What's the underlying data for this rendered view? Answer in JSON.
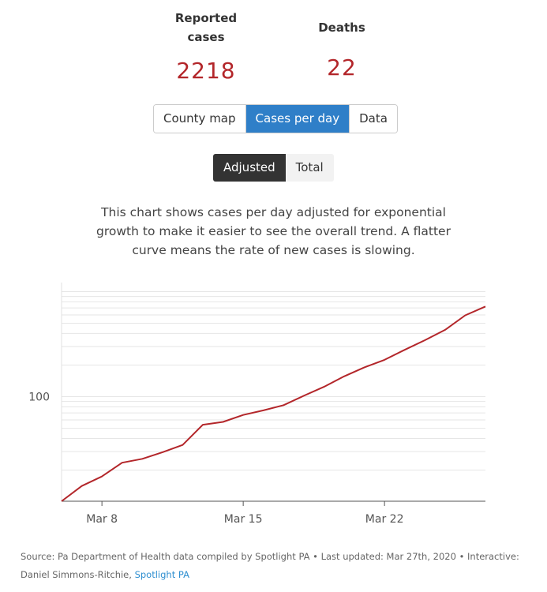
{
  "stats": {
    "cases": {
      "label": "Reported cases",
      "value": "2218"
    },
    "deaths": {
      "label": "Deaths",
      "value": "22"
    }
  },
  "tabs": [
    {
      "label": "County map",
      "active": false
    },
    {
      "label": "Cases per day",
      "active": true
    },
    {
      "label": "Data",
      "active": false
    }
  ],
  "mode_toggle": [
    {
      "label": "Adjusted",
      "active": true
    },
    {
      "label": "Total",
      "active": false
    }
  ],
  "description": "This chart shows cases per day adjusted for exponential growth to make it easier to see the overall trend. A flatter curve means the rate of new cases is slowing.",
  "colors": {
    "line": "#b3262a",
    "accent": "#2f7fc8",
    "value": "#b3262a"
  },
  "chart_data": {
    "type": "line",
    "title": "",
    "xlabel": "",
    "ylabel": "",
    "y_scale": "log",
    "ylim": [
      10.1,
      1220
    ],
    "yticks": [
      {
        "value": 100,
        "label": "100"
      }
    ],
    "xticks": [
      {
        "value": "2020-03-08",
        "label": "Mar 8"
      },
      {
        "value": "2020-03-15",
        "label": "Mar 15"
      },
      {
        "value": "2020-03-22",
        "label": "Mar 22"
      }
    ],
    "xlim": [
      "2020-03-06",
      "2020-03-27"
    ],
    "grid": true,
    "series": [
      {
        "x": [
          "2020-03-06",
          "2020-03-07",
          "2020-03-08",
          "2020-03-09",
          "2020-03-10",
          "2020-03-11",
          "2020-03-12",
          "2020-03-13",
          "2020-03-14",
          "2020-03-15",
          "2020-03-16",
          "2020-03-17",
          "2020-03-18",
          "2020-03-19",
          "2020-03-20",
          "2020-03-21",
          "2020-03-22",
          "2020-03-23",
          "2020-03-24",
          "2020-03-25",
          "2020-03-26",
          "2020-03-27"
        ],
        "values": [
          10.1,
          14.1,
          17.4,
          23.5,
          25.6,
          29.6,
          34.7,
          54,
          57.5,
          67,
          74,
          83,
          102,
          124,
          156,
          190,
          224,
          279,
          345,
          433,
          595,
          722
        ]
      }
    ]
  },
  "footer": {
    "source_text": "Source: Pa Department of Health data compiled by Spotlight PA • Last updated: Mar 27th, 2020 • Interactive: Daniel Simmons-Ritchie,",
    "link_text": "Spotlight PA"
  }
}
